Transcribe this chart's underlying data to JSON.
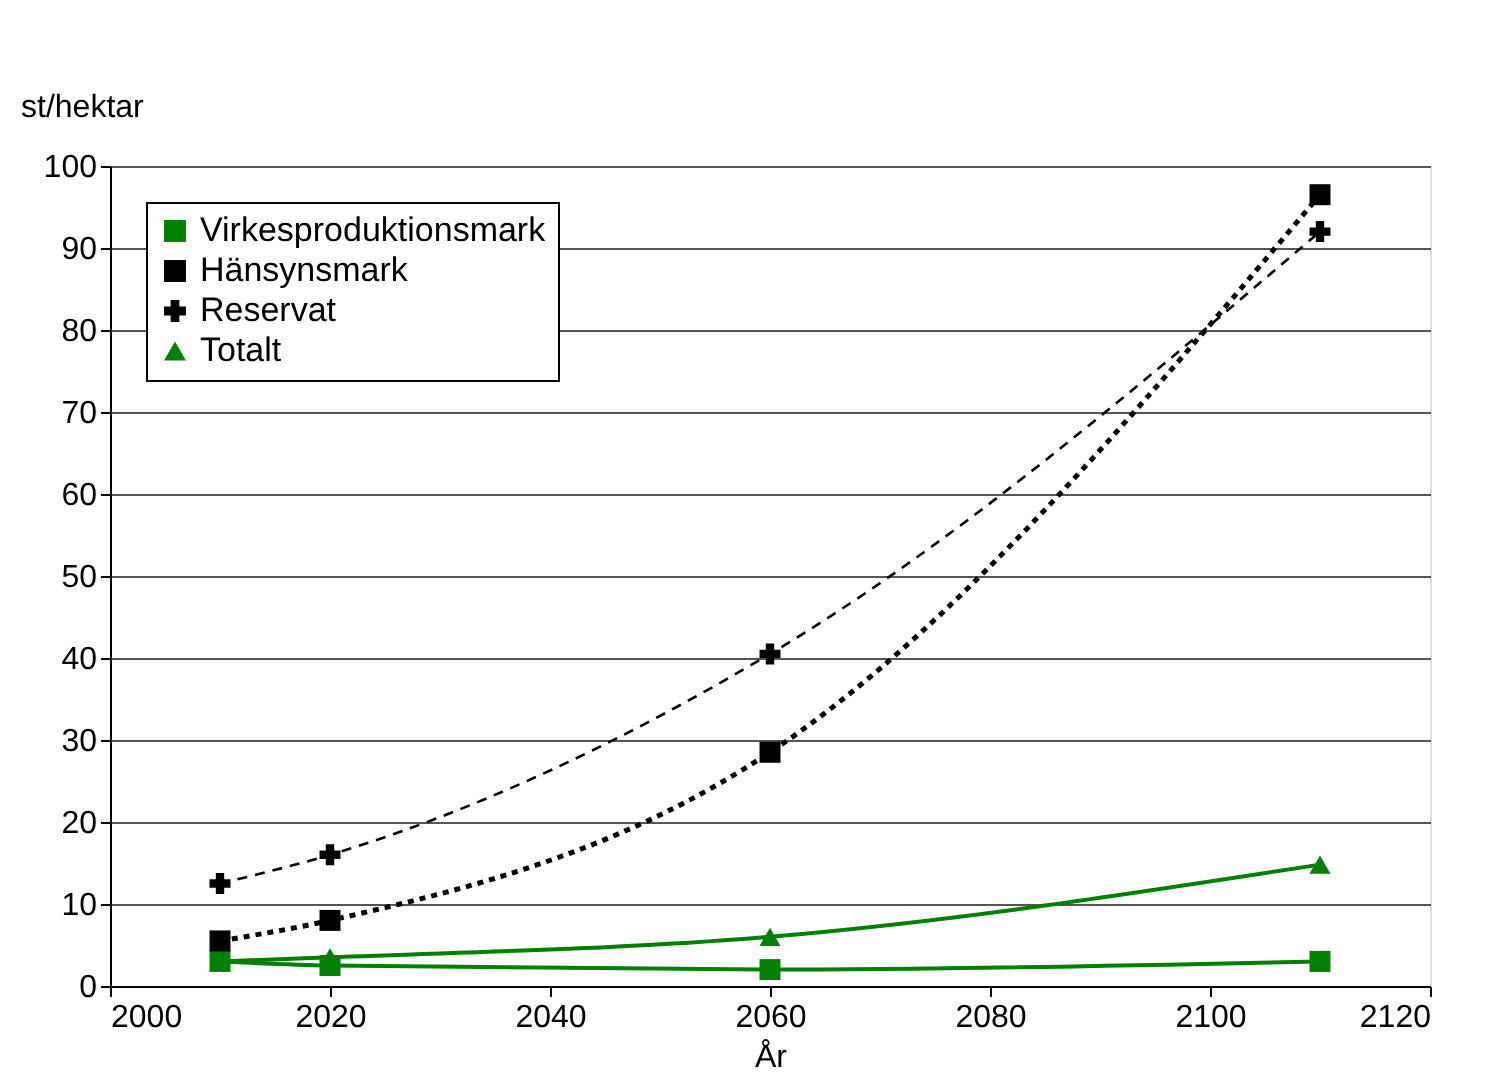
{
  "chart_data": {
    "type": "line",
    "ylabel": "st/hektar",
    "xlabel": "År",
    "x": [
      2010,
      2020,
      2060,
      2110
    ],
    "xlim": [
      2000,
      2120
    ],
    "xticks": [
      2000,
      2020,
      2040,
      2060,
      2080,
      2100,
      2120
    ],
    "ylim": [
      0,
      100
    ],
    "yticks": [
      0,
      10,
      20,
      30,
      40,
      50,
      60,
      70,
      80,
      90,
      100
    ],
    "grid": "y",
    "legend": "top left",
    "series": [
      {
        "name": "Virkesproduktionsmark",
        "color": "#008000",
        "marker": "square",
        "line_style": "solid",
        "values": [
          3,
          2.5,
          2,
          3
        ]
      },
      {
        "name": "Hänsynsmark",
        "color": "#000000",
        "marker": "square",
        "line_style": "dotted",
        "values": [
          5.5,
          8,
          28.5,
          96.5
        ]
      },
      {
        "name": "Reservat",
        "color": "#000000",
        "marker": "cross",
        "line_style": "dashed",
        "values": [
          12.5,
          16,
          40.5,
          92
        ]
      },
      {
        "name": "Totalt",
        "color": "#008000",
        "marker": "triangle",
        "line_style": "solid",
        "values": [
          3,
          3.5,
          6,
          14.8
        ]
      }
    ]
  }
}
